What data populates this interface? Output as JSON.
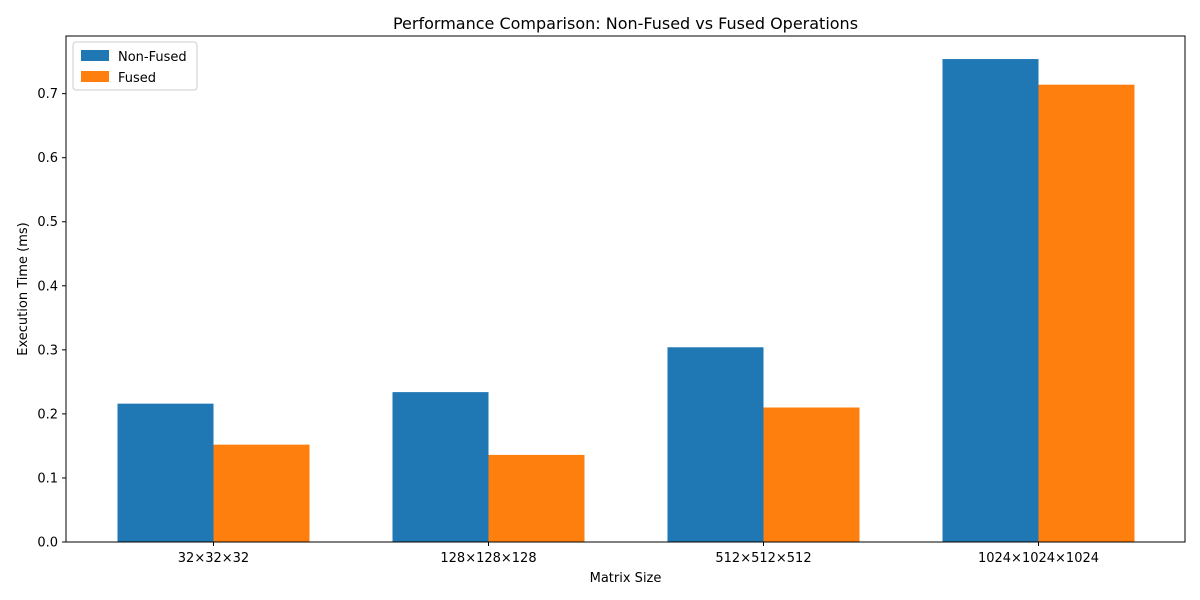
{
  "chart_data": {
    "type": "bar",
    "title": "Performance Comparison: Non-Fused vs Fused Operations",
    "xlabel": "Matrix Size",
    "ylabel": "Execution Time (ms)",
    "categories": [
      "32×32×32",
      "128×128×128",
      "512×512×512",
      "1024×1024×1024"
    ],
    "series": [
      {
        "name": "Non-Fused",
        "color": "#1f77b4",
        "values": [
          0.216,
          0.234,
          0.304,
          0.754
        ]
      },
      {
        "name": "Fused",
        "color": "#ff7f0e",
        "values": [
          0.152,
          0.136,
          0.21,
          0.714
        ]
      }
    ],
    "ylim": [
      0,
      0.79
    ],
    "yticks": [
      0.0,
      0.1,
      0.2,
      0.3,
      0.4,
      0.5,
      0.6,
      0.7
    ],
    "ytick_labels": [
      "0.0",
      "0.1",
      "0.2",
      "0.3",
      "0.4",
      "0.5",
      "0.6",
      "0.7"
    ],
    "legend_position": "top-left",
    "grid": false
  }
}
